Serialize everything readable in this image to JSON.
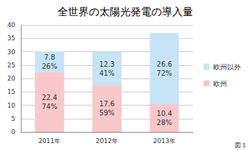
{
  "chart_data": {
    "type": "bar",
    "title": "全世界の太陽光発電の導入量",
    "categories": [
      "2011年",
      "2012年",
      "2013年"
    ],
    "series": [
      {
        "name": "欧州",
        "color": "#f8c8cb",
        "values": [
          22.4,
          17.6,
          10.4
        ],
        "share_labels": [
          "74%",
          "59%",
          "28%"
        ]
      },
      {
        "name": "欧州以外",
        "color": "#c6e4f5",
        "values": [
          7.8,
          12.3,
          26.6
        ],
        "share_labels": [
          "26%",
          "41%",
          "72%"
        ]
      }
    ],
    "ylim": [
      0,
      40
    ],
    "yticks": [
      0,
      5,
      10,
      15,
      20,
      25,
      30,
      35,
      40
    ],
    "grid": true,
    "stacked": true,
    "data_labels": true,
    "legend": "right",
    "annotation": "図１"
  }
}
